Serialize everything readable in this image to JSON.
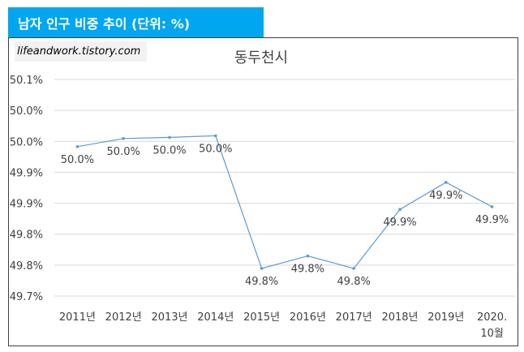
{
  "banner": {
    "title": "남자 인구 비중 추이 (단위: %)",
    "color": "#00a6f0"
  },
  "watermark": {
    "text": "lifeandwork.tistory.com"
  },
  "chart_data": {
    "type": "line",
    "title": "동두천시",
    "xlabel": "",
    "ylabel": "",
    "categories": [
      "2011년",
      "2012년",
      "2013년",
      "2014년",
      "2015년",
      "2016년",
      "2017년",
      "2018년",
      "2019년",
      "2020. 10월"
    ],
    "y_tick_labels": [
      "49.7%",
      "49.8%",
      "49.8%",
      "49.9%",
      "49.9%",
      "50.0%",
      "50.0%",
      "50.1%"
    ],
    "ylim": [
      49.7,
      50.1
    ],
    "series": [
      {
        "color": "#5b9bd5",
        "values": [
          49.976,
          49.991,
          49.993,
          49.996,
          49.751,
          49.774,
          49.751,
          49.86,
          49.91,
          49.865
        ],
        "labels": [
          "50.0%",
          "50.0%",
          "50.0%",
          "50.0%",
          "49.8%",
          "49.8%",
          "49.8%",
          "49.9%",
          "49.9%",
          "49.9%"
        ]
      }
    ],
    "grid": true,
    "legend": "none"
  }
}
